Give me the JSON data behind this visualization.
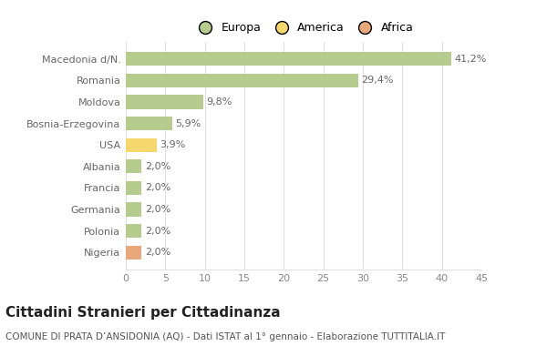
{
  "categories": [
    "Nigeria",
    "Polonia",
    "Germania",
    "Francia",
    "Albania",
    "USA",
    "Bosnia-Erzegovina",
    "Moldova",
    "Romania",
    "Macedonia d/N."
  ],
  "values": [
    2.0,
    2.0,
    2.0,
    2.0,
    2.0,
    3.9,
    5.9,
    9.8,
    29.4,
    41.2
  ],
  "labels": [
    "2,0%",
    "2,0%",
    "2,0%",
    "2,0%",
    "2,0%",
    "3,9%",
    "5,9%",
    "9,8%",
    "29,4%",
    "41,2%"
  ],
  "colors": [
    "#e8a87c",
    "#b5cc8e",
    "#b5cc8e",
    "#b5cc8e",
    "#b5cc8e",
    "#f5d76e",
    "#b5cc8e",
    "#b5cc8e",
    "#b5cc8e",
    "#b5cc8e"
  ],
  "legend": [
    {
      "label": "Europa",
      "color": "#b5cc8e"
    },
    {
      "label": "America",
      "color": "#f5d76e"
    },
    {
      "label": "Africa",
      "color": "#e8a87c"
    }
  ],
  "title": "Cittadini Stranieri per Cittadinanza",
  "subtitle": "COMUNE DI PRATA D’ANSIDONIA (AQ) - Dati ISTAT al 1° gennaio - Elaborazione TUTTITALIA.IT",
  "xlim": [
    0,
    45
  ],
  "xticks": [
    0,
    5,
    10,
    15,
    20,
    25,
    30,
    35,
    40,
    45
  ],
  "background_color": "#ffffff",
  "bar_height": 0.65,
  "grid_color": "#e0e0e0",
  "label_fontsize": 8,
  "title_fontsize": 11,
  "subtitle_fontsize": 7.5,
  "ytick_fontsize": 8,
  "xtick_fontsize": 8
}
